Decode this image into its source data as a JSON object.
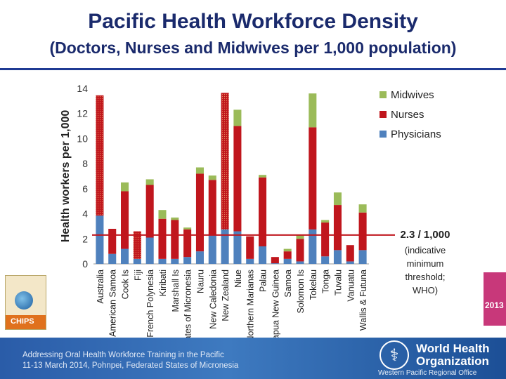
{
  "header": {
    "title": "Pacific Health Workforce Density",
    "subtitle": "(Doctors, Nurses and Midwives per 1,000 population)"
  },
  "chart_data": {
    "type": "bar",
    "stacked": true,
    "ylabel": "Health workers per 1,000",
    "xlabel": "",
    "ylim": [
      0,
      14
    ],
    "yticks": [
      0,
      2,
      4,
      6,
      8,
      10,
      12,
      14
    ],
    "grid": false,
    "legend_position": "top-right",
    "categories": [
      "Australia",
      "American Samoa",
      "Cook Is",
      "Fiji",
      "French Polynesia",
      "Kiribati",
      "Marshall Is",
      "Fed States of Micronesia",
      "Nauru",
      "New Caledonia",
      "New Zealand",
      "Niue",
      "Northern Marianas",
      "Palau",
      "Papua New Guinea",
      "Samoa",
      "Solomon Is",
      "Tokelau",
      "Tonga",
      "Tuvalu",
      "Vanuatu",
      "Wallis & Futuna"
    ],
    "hatched_categories": [
      "Australia",
      "Fiji",
      "New Zealand"
    ],
    "series": [
      {
        "name": "Physicians",
        "color": "#4f81bd",
        "values": [
          3.85,
          0.8,
          1.2,
          0.4,
          2.1,
          0.4,
          0.4,
          0.55,
          1.0,
          2.3,
          2.75,
          2.6,
          0.4,
          1.4,
          0.05,
          0.4,
          0.2,
          2.75,
          0.6,
          1.1,
          0.2,
          1.1
        ]
      },
      {
        "name": "Nurses",
        "color": "#c0161d",
        "values": [
          9.6,
          2.0,
          4.6,
          2.2,
          4.2,
          3.2,
          3.1,
          2.2,
          6.2,
          4.4,
          10.9,
          8.4,
          1.8,
          5.5,
          0.5,
          0.6,
          1.8,
          8.15,
          2.7,
          3.6,
          1.3,
          3.0
        ]
      },
      {
        "name": "Midwives",
        "color": "#9bbb59",
        "values": [
          0,
          0,
          0.7,
          0,
          0.45,
          0.7,
          0.2,
          0.15,
          0.5,
          0.35,
          0,
          1.3,
          0,
          0.2,
          0,
          0.2,
          0.3,
          2.7,
          0.2,
          1.0,
          0,
          0.65
        ]
      }
    ],
    "threshold": {
      "value": 2.3,
      "color": "#c0161d",
      "label": "2.3 / 1,000",
      "note": "(indicative minimum threshold; WHO)"
    }
  },
  "footer": {
    "line1": "Addressing Oral Health Workforce Training in the Pacific",
    "line2": "11-13 March 2014, Pohnpei, Federated States of Micronesia",
    "org_name_1": "World Health",
    "org_name_2": "Organization",
    "org_region": "Western Pacific Regional Office",
    "cover_left_label": "CHIPS",
    "cover_right_label": "2013"
  }
}
